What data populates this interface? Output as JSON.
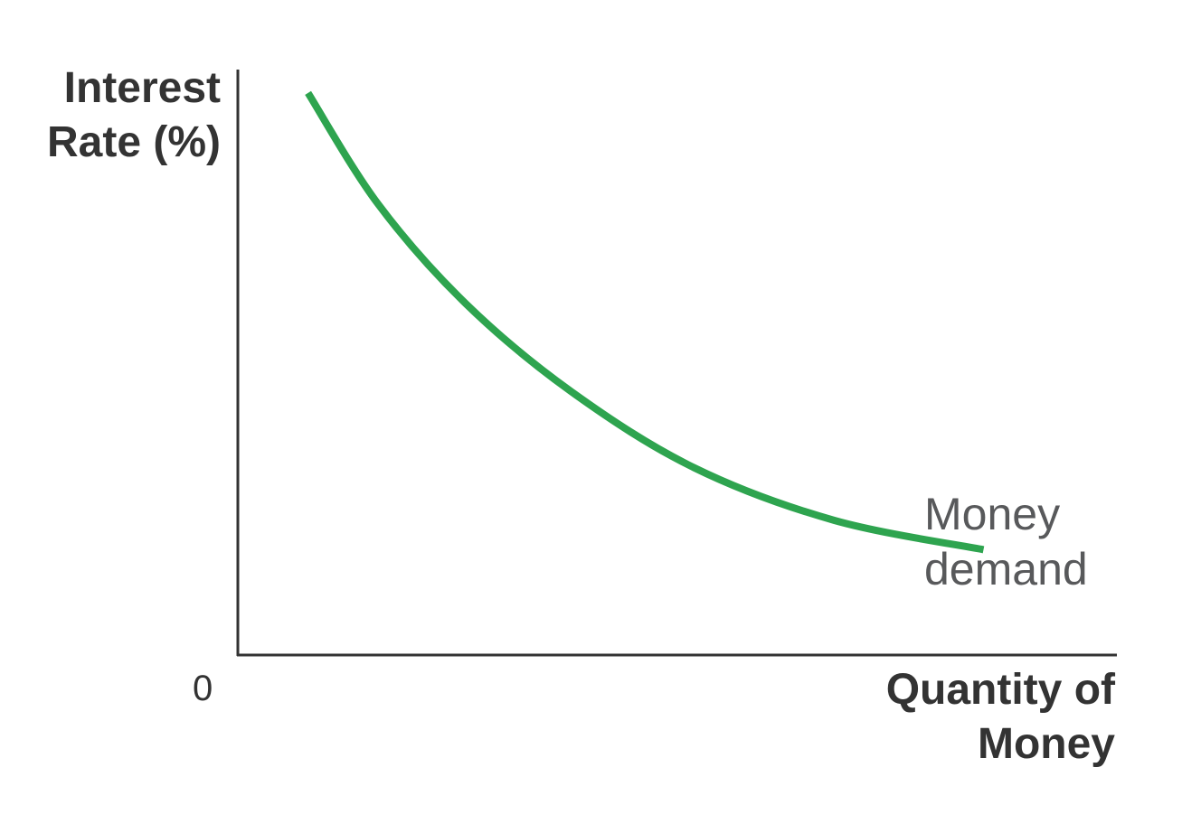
{
  "chart_data": {
    "type": "line",
    "title": "",
    "ylabel_lines": [
      "Interest",
      "Rate (%)"
    ],
    "xlabel_lines": [
      "Quantity of",
      "Money"
    ],
    "origin_label": "0",
    "grid": false,
    "series": [
      {
        "name": "Money demand",
        "label_lines": [
          "Money",
          "demand"
        ],
        "color": "#2ea44f",
        "x": [
          0.08,
          0.16,
          0.26,
          0.38,
          0.52,
          0.68,
          0.85
        ],
        "y": [
          0.96,
          0.77,
          0.6,
          0.45,
          0.32,
          0.23,
          0.18
        ]
      }
    ],
    "xlim": [
      0,
      1
    ],
    "ylim": [
      0,
      1
    ],
    "axis_color": "#333333"
  }
}
